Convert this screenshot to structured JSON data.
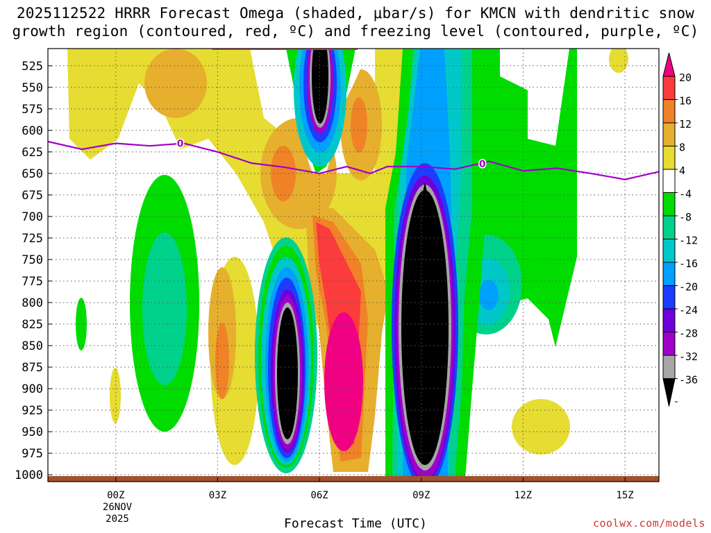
{
  "title": {
    "line1": "2025112522 HRRR Forecast Omega (shaded, μbar/s) for KMCN with dendritic snow",
    "line2": "growth region (contoured, red, ºC) and freezing level (contoured, purple, ºC)"
  },
  "credit": "coolwx.com/models",
  "colors": {
    "bar_colors": [
      "#000000",
      "#a6a6a6",
      "#a000c8",
      "#6e00dc",
      "#1e3cff",
      "#00a0ff",
      "#00c8c8",
      "#00d28c",
      "#00dc00",
      "#ffffff",
      "#e6dc32",
      "#e6af2d",
      "#f08228",
      "#fa3c3c",
      "#f00082"
    ],
    "freezing_line": "#a000c8",
    "ground": "#a0522d"
  },
  "chart_data": {
    "type": "heatmap",
    "title": "2025112522 HRRR Forecast Omega (shaded, μbar/s) for KMCN",
    "xlabel": "Forecast Time (UTC)",
    "ylabel": "",
    "x_ticks": [
      "00Z",
      "03Z",
      "06Z",
      "09Z",
      "12Z",
      "15Z"
    ],
    "x_tick_hours": [
      2,
      5,
      8,
      11,
      14,
      17
    ],
    "x_date_label": [
      "26NOV",
      "2025"
    ],
    "x_range_hours": [
      0.0,
      18.0
    ],
    "y_ticks": [
      525,
      550,
      575,
      600,
      625,
      650,
      675,
      700,
      725,
      750,
      775,
      800,
      825,
      850,
      875,
      900,
      925,
      950,
      975,
      1000
    ],
    "y_range_hPa": [
      505,
      1008
    ],
    "colorbar_labels": [
      "20",
      "16",
      "12",
      "8",
      "4",
      "-4",
      "-8",
      "-12",
      "-16",
      "-20",
      "-24",
      "-28",
      "-32",
      "-36"
    ],
    "freezing_level": {
      "label": "0",
      "hours": [
        0.0,
        1.0,
        2.0,
        3.0,
        4.0,
        5.0,
        6.0,
        7.0,
        8.0,
        8.8,
        9.5,
        10.0,
        11.0,
        12.0,
        13.0,
        14.0,
        15.0,
        16.0,
        17.0,
        18.0
      ],
      "pressure_hPa": [
        613,
        622,
        615,
        618,
        615,
        625,
        638,
        643,
        650,
        642,
        650,
        642,
        642,
        645,
        636,
        647,
        644,
        650,
        657,
        648
      ]
    },
    "omega_features": [
      {
        "name": "ascent core 09Z",
        "hour": 11.0,
        "p_top": 630,
        "p_bot": 990,
        "min_value": -36
      },
      {
        "name": "ascent core 05Z",
        "hour": 7.2,
        "p_top": 760,
        "p_bot": 955,
        "min_value": -36
      },
      {
        "name": "ascent core aloft 06Z",
        "hour": 7.85,
        "p_top": 508,
        "p_bot": 590,
        "min_value": -36
      },
      {
        "name": "descent max 07Z",
        "hour": 8.95,
        "p_top": 760,
        "p_bot": 960,
        "max_value": 20
      }
    ]
  }
}
